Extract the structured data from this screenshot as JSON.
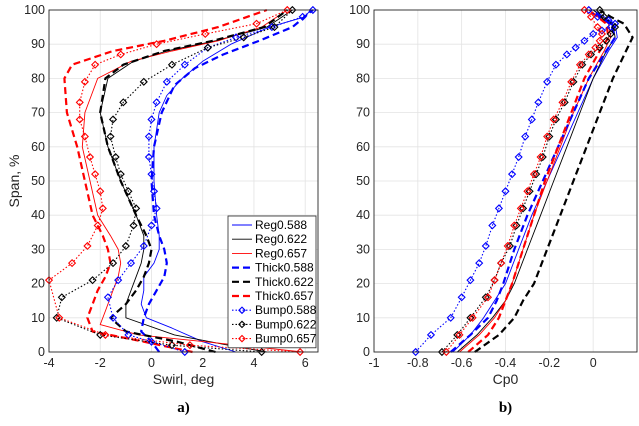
{
  "chart_data": [
    {
      "type": "line",
      "panel_label": "a)",
      "xlabel": "Swirl, deg",
      "ylabel": "Span, %",
      "xlim": [
        -4,
        6.5
      ],
      "ylim": [
        0,
        100
      ],
      "xticks": [
        "-4",
        "-2",
        "0",
        "2",
        "4",
        "6"
      ],
      "yticks": [
        "0",
        "10",
        "20",
        "30",
        "40",
        "50",
        "60",
        "70",
        "80",
        "90",
        "100"
      ],
      "grid": true,
      "legend": "right-middle",
      "series": [
        {
          "name": "Reg0.588",
          "color": "#0000ff",
          "style": "solid",
          "marker": "none",
          "x": [
            3.3,
            2.0,
            0.8,
            -0.2,
            -0.4,
            -0.3,
            -0.3,
            0.1,
            0.3,
            0.3,
            0.2,
            0.1,
            0.1,
            0.3,
            0.6,
            1.2,
            2.0,
            3.1,
            4.6,
            6.0,
            6.2
          ],
          "y": [
            0,
            3,
            7,
            10,
            14,
            18,
            22,
            26,
            30,
            34,
            40,
            50,
            60,
            70,
            75,
            80,
            85,
            90,
            95,
            98,
            100
          ]
        },
        {
          "name": "Reg0.622",
          "color": "#000000",
          "style": "solid",
          "marker": "none",
          "x": [
            4.5,
            3.0,
            0.9,
            -1.0,
            -1.0,
            -0.8,
            -0.6,
            -0.4,
            -0.3,
            -0.3,
            -0.6,
            -1.2,
            -1.7,
            -2.0,
            -1.7,
            -0.7,
            0.6,
            2.5,
            4.5,
            5.5
          ],
          "y": [
            0,
            2,
            5,
            10,
            14,
            18,
            22,
            26,
            30,
            34,
            40,
            50,
            60,
            70,
            80,
            85,
            88,
            91,
            95,
            100
          ]
        },
        {
          "name": "Reg0.657",
          "color": "#ff0000",
          "style": "solid",
          "marker": "none",
          "x": [
            5.9,
            3.4,
            -0.5,
            -2.0,
            -1.8,
            -1.5,
            -1.3,
            -1.2,
            -1.3,
            -1.6,
            -2.1,
            -2.4,
            -2.7,
            -2.6,
            -2.1,
            -0.8,
            0.8,
            2.6,
            4.3,
            5.3
          ],
          "y": [
            0,
            2,
            5,
            8,
            12,
            18,
            22,
            26,
            30,
            34,
            40,
            50,
            60,
            70,
            80,
            85,
            88,
            91,
            95,
            100
          ]
        },
        {
          "name": "Thick0.588",
          "color": "#0000ff",
          "style": "dashed",
          "marker": "none",
          "x": [
            0.3,
            0.0,
            -0.4,
            -0.3,
            -0.1,
            0.2,
            0.5,
            0.6,
            0.5,
            0.3,
            0.1,
            0.0,
            0.1,
            0.4,
            0.9,
            1.7,
            2.8,
            4.2,
            5.5,
            6.3
          ],
          "y": [
            0,
            3,
            6,
            10,
            14,
            18,
            22,
            26,
            30,
            34,
            40,
            50,
            60,
            70,
            78,
            83,
            87,
            91,
            95,
            100
          ]
        },
        {
          "name": "Thick0.622",
          "color": "#000000",
          "style": "dashed",
          "marker": "none",
          "x": [
            2.5,
            1.0,
            -1.0,
            -1.6,
            -1.0,
            -0.6,
            -0.3,
            -0.1,
            0.0,
            -0.2,
            -0.6,
            -1.2,
            -1.7,
            -2.0,
            -1.8,
            -1.1,
            0.5,
            2.4,
            4.4,
            5.3
          ],
          "y": [
            0,
            3,
            6,
            10,
            14,
            18,
            22,
            26,
            30,
            34,
            40,
            50,
            60,
            70,
            80,
            84,
            88,
            91,
            95,
            100
          ]
        },
        {
          "name": "Thick0.657",
          "color": "#ff0000",
          "style": "dashed",
          "marker": "none",
          "x": [
            1.6,
            -0.3,
            -2.3,
            -2.5,
            -2.3,
            -2.1,
            -1.8,
            -1.6,
            -1.7,
            -1.9,
            -2.3,
            -2.6,
            -2.9,
            -3.3,
            -3.4,
            -3.1,
            -1.5,
            0.5,
            2.6,
            4.5
          ],
          "y": [
            0,
            3,
            6,
            10,
            14,
            18,
            22,
            26,
            30,
            34,
            40,
            50,
            60,
            70,
            80,
            84,
            88,
            91,
            95,
            100
          ]
        },
        {
          "name": "Bump0.588",
          "color": "#0000ff",
          "style": "dotted",
          "marker": "diamond",
          "x": [
            1.3,
            0.0,
            -0.9,
            -1.5,
            -1.7,
            -1.3,
            -0.8,
            -0.3,
            0.0,
            0.2,
            0.1,
            0.0,
            -0.1,
            -0.1,
            0.0,
            0.2,
            0.6,
            1.3,
            2.2,
            3.3,
            4.7,
            5.9,
            6.3
          ],
          "y": [
            0,
            3,
            5,
            10,
            16,
            21,
            26,
            31,
            37,
            42,
            47,
            52,
            57,
            63,
            68,
            73,
            79,
            84,
            89,
            92,
            95,
            98,
            100
          ]
        },
        {
          "name": "Bump0.622",
          "color": "#000000",
          "style": "dotted",
          "marker": "diamond",
          "x": [
            4.3,
            0.8,
            -2.0,
            -3.7,
            -3.5,
            -2.3,
            -1.5,
            -1.0,
            -0.7,
            -0.6,
            -0.9,
            -1.2,
            -1.4,
            -1.6,
            -1.5,
            -1.1,
            -0.3,
            0.8,
            2.2,
            3.6,
            4.8,
            5.5
          ],
          "y": [
            0,
            2,
            5,
            10,
            16,
            21,
            26,
            31,
            37,
            42,
            47,
            52,
            57,
            63,
            68,
            73,
            79,
            84,
            89,
            92,
            95,
            100
          ]
        },
        {
          "name": "Bump0.657",
          "color": "#ff0000",
          "style": "dotted",
          "marker": "diamond",
          "x": [
            5.8,
            1.5,
            -1.8,
            -3.6,
            -4.0,
            -3.1,
            -2.5,
            -2.1,
            -1.9,
            -2.0,
            -2.2,
            -2.4,
            -2.6,
            -2.8,
            -2.8,
            -2.6,
            -2.2,
            -1.2,
            0.2,
            2.1,
            4.1,
            5.3
          ],
          "y": [
            0,
            2,
            5,
            10,
            21,
            26,
            31,
            37,
            42,
            47,
            52,
            57,
            63,
            68,
            73,
            79,
            84,
            87,
            90,
            93,
            96,
            100
          ]
        }
      ]
    },
    {
      "type": "line",
      "panel_label": "b)",
      "xlabel": "Cp0",
      "ylabel": "",
      "xlim": [
        -1,
        0.2
      ],
      "ylim": [
        0,
        100
      ],
      "xticks": [
        "-1",
        "-0.8",
        "-0.6",
        "-0.4",
        "-0.2",
        "0"
      ],
      "yticks": [
        "0",
        "10",
        "20",
        "30",
        "40",
        "50",
        "60",
        "70",
        "80",
        "90",
        "100"
      ],
      "grid": true,
      "series": [
        {
          "name": "Reg0.588",
          "color": "#0000ff",
          "style": "solid",
          "marker": "none",
          "x": [
            -0.64,
            -0.56,
            -0.5,
            -0.45,
            -0.4,
            -0.34,
            -0.28,
            -0.21,
            -0.14,
            -0.07,
            0.0,
            0.07,
            0.11,
            0.1,
            0.05,
            0.0
          ],
          "y": [
            0,
            5,
            10,
            15,
            20,
            30,
            40,
            50,
            60,
            70,
            80,
            88,
            92,
            96,
            98,
            100
          ]
        },
        {
          "name": "Reg0.622",
          "color": "#000000",
          "style": "solid",
          "marker": "none",
          "x": [
            -0.62,
            -0.53,
            -0.46,
            -0.4,
            -0.36,
            -0.3,
            -0.24,
            -0.18,
            -0.12,
            -0.06,
            0.0,
            0.06,
            0.1,
            0.09,
            0.04,
            0.0
          ],
          "y": [
            0,
            5,
            10,
            15,
            20,
            30,
            40,
            50,
            60,
            70,
            80,
            88,
            92,
            96,
            98,
            100
          ]
        },
        {
          "name": "Reg0.657",
          "color": "#ff0000",
          "style": "solid",
          "marker": "none",
          "x": [
            -0.61,
            -0.52,
            -0.45,
            -0.4,
            -0.37,
            -0.32,
            -0.27,
            -0.21,
            -0.15,
            -0.09,
            -0.02,
            0.05,
            0.08,
            0.07,
            0.02,
            -0.02
          ],
          "y": [
            0,
            5,
            10,
            15,
            20,
            30,
            40,
            50,
            60,
            70,
            80,
            88,
            92,
            96,
            98,
            100
          ]
        },
        {
          "name": "Thick0.588",
          "color": "#0000ff",
          "style": "dashed",
          "marker": "none",
          "x": [
            -0.65,
            -0.56,
            -0.48,
            -0.44,
            -0.41,
            -0.36,
            -0.3,
            -0.23,
            -0.16,
            -0.09,
            -0.02,
            0.06,
            0.1,
            0.08,
            0.03,
            0.0
          ],
          "y": [
            0,
            5,
            10,
            15,
            20,
            30,
            40,
            50,
            60,
            70,
            80,
            88,
            92,
            96,
            98,
            100
          ]
        },
        {
          "name": "Thick0.622",
          "color": "#000000",
          "style": "dashed",
          "marker": "none",
          "x": [
            -0.54,
            -0.43,
            -0.36,
            -0.32,
            -0.27,
            -0.21,
            -0.15,
            -0.09,
            -0.03,
            0.03,
            0.09,
            0.15,
            0.18,
            0.14,
            0.08,
            0.03
          ],
          "y": [
            0,
            5,
            10,
            15,
            20,
            30,
            40,
            50,
            60,
            70,
            80,
            88,
            92,
            96,
            98,
            100
          ]
        },
        {
          "name": "Thick0.657",
          "color": "#ff0000",
          "style": "dashed",
          "marker": "none",
          "x": [
            -0.57,
            -0.48,
            -0.43,
            -0.4,
            -0.37,
            -0.32,
            -0.27,
            -0.22,
            -0.16,
            -0.1,
            -0.04,
            0.03,
            0.07,
            0.06,
            0.02,
            -0.02
          ],
          "y": [
            0,
            5,
            10,
            15,
            20,
            30,
            40,
            50,
            60,
            70,
            80,
            88,
            92,
            96,
            98,
            100
          ]
        },
        {
          "name": "Bump0.588",
          "color": "#0000ff",
          "style": "dotted",
          "marker": "diamond",
          "x": [
            -0.81,
            -0.74,
            -0.65,
            -0.6,
            -0.56,
            -0.52,
            -0.49,
            -0.46,
            -0.43,
            -0.4,
            -0.37,
            -0.34,
            -0.31,
            -0.28,
            -0.25,
            -0.21,
            -0.17,
            -0.12,
            -0.08,
            -0.04,
            0.0,
            0.04,
            0.08,
            0.1,
            0.07,
            0.02,
            -0.02
          ],
          "y": [
            0,
            5,
            10,
            16,
            21,
            26,
            31,
            37,
            42,
            47,
            52,
            57,
            63,
            68,
            73,
            79,
            84,
            87,
            89,
            91,
            93,
            94,
            95,
            96,
            97,
            98,
            100
          ]
        },
        {
          "name": "Bump0.622",
          "color": "#000000",
          "style": "dotted",
          "marker": "diamond",
          "x": [
            -0.69,
            -0.62,
            -0.56,
            -0.49,
            -0.45,
            -0.42,
            -0.38,
            -0.35,
            -0.32,
            -0.29,
            -0.26,
            -0.23,
            -0.2,
            -0.17,
            -0.13,
            -0.09,
            -0.05,
            -0.01,
            0.03,
            0.06,
            0.08,
            0.1,
            0.05,
            0.03
          ],
          "y": [
            0,
            5,
            10,
            16,
            21,
            26,
            31,
            37,
            42,
            47,
            52,
            57,
            63,
            68,
            73,
            79,
            84,
            87,
            89,
            91,
            93,
            95,
            98,
            100
          ]
        },
        {
          "name": "Bump0.657",
          "color": "#ff0000",
          "style": "dotted",
          "marker": "diamond",
          "x": [
            -0.67,
            -0.61,
            -0.55,
            -0.48,
            -0.45,
            -0.42,
            -0.39,
            -0.36,
            -0.33,
            -0.3,
            -0.27,
            -0.24,
            -0.21,
            -0.18,
            -0.14,
            -0.1,
            -0.06,
            -0.02,
            0.01,
            0.03,
            0.04,
            0.02,
            -0.01,
            -0.04
          ],
          "y": [
            0,
            5,
            10,
            16,
            21,
            26,
            31,
            37,
            42,
            47,
            52,
            57,
            63,
            68,
            73,
            79,
            84,
            87,
            89,
            91,
            93,
            95,
            98,
            100
          ]
        }
      ]
    }
  ]
}
